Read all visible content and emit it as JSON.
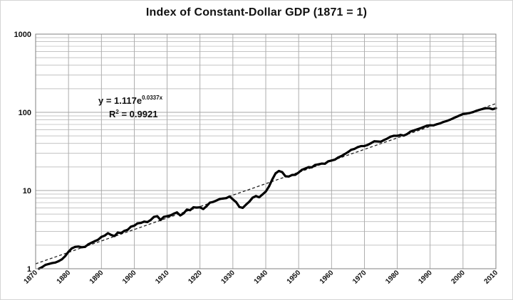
{
  "chart_data": {
    "type": "line",
    "title": "Index of Constant-Dollar  GDP  (1871 = 1)",
    "xlabel": "",
    "ylabel": "",
    "y_scale": "log",
    "xlim": [
      1870,
      2010
    ],
    "ylim": [
      1,
      1000
    ],
    "grid": true,
    "legend": "none",
    "x_ticks": [
      "1870",
      "1880",
      "1890",
      "1900",
      "1910",
      "1920",
      "1930",
      "1940",
      "1950",
      "1960",
      "1970",
      "1980",
      "1990",
      "2000",
      "2010"
    ],
    "y_ticks": [
      "1",
      "10",
      "100",
      "1000"
    ],
    "annotation": {
      "equation_prefix": "y = 1.117e",
      "equation_exponent": "0.0337x",
      "r2_prefix": "R",
      "r2_sup": "2",
      "r2_suffix": " = 0.9921"
    },
    "trendline": {
      "style": "dashed",
      "a": 1.117,
      "b": 0.0337,
      "x_origin_year": 1870,
      "color": "#222222"
    },
    "series": [
      {
        "color": "#000000",
        "x": [
          1871,
          1872,
          1873,
          1874,
          1875,
          1876,
          1877,
          1878,
          1879,
          1880,
          1881,
          1882,
          1883,
          1884,
          1885,
          1886,
          1887,
          1888,
          1889,
          1890,
          1891,
          1892,
          1893,
          1894,
          1895,
          1896,
          1897,
          1898,
          1899,
          1900,
          1901,
          1902,
          1903,
          1904,
          1905,
          1906,
          1907,
          1908,
          1909,
          1910,
          1911,
          1912,
          1913,
          1914,
          1915,
          1916,
          1917,
          1918,
          1919,
          1920,
          1921,
          1922,
          1923,
          1924,
          1925,
          1926,
          1927,
          1928,
          1929,
          1930,
          1931,
          1932,
          1933,
          1934,
          1935,
          1936,
          1937,
          1938,
          1939,
          1940,
          1941,
          1942,
          1943,
          1944,
          1945,
          1946,
          1947,
          1948,
          1949,
          1950,
          1951,
          1952,
          1953,
          1954,
          1955,
          1956,
          1957,
          1958,
          1959,
          1960,
          1961,
          1962,
          1963,
          1964,
          1965,
          1966,
          1967,
          1968,
          1969,
          1970,
          1971,
          1972,
          1973,
          1974,
          1975,
          1976,
          1977,
          1978,
          1979,
          1980,
          1981,
          1982,
          1983,
          1984,
          1985,
          1986,
          1987,
          1988,
          1989,
          1990,
          1991,
          1992,
          1993,
          1994,
          1995,
          1996,
          1997,
          1998,
          1999,
          2000,
          2001,
          2002,
          2003,
          2004,
          2005,
          2006,
          2007,
          2008,
          2009,
          2010
        ],
        "values": [
          1.0,
          1.05,
          1.12,
          1.15,
          1.18,
          1.2,
          1.25,
          1.32,
          1.45,
          1.65,
          1.82,
          1.9,
          1.92,
          1.88,
          1.9,
          2.05,
          2.15,
          2.25,
          2.35,
          2.55,
          2.65,
          2.85,
          2.7,
          2.62,
          2.9,
          2.85,
          3.05,
          3.15,
          3.45,
          3.55,
          3.8,
          3.85,
          4.0,
          3.95,
          4.2,
          4.6,
          4.7,
          4.2,
          4.6,
          4.7,
          4.8,
          5.05,
          5.25,
          4.8,
          5.1,
          5.7,
          5.6,
          6.1,
          6.05,
          6.1,
          5.8,
          6.3,
          7.0,
          7.15,
          7.45,
          7.8,
          7.9,
          8.0,
          8.4,
          7.7,
          7.1,
          6.15,
          6.0,
          6.6,
          7.2,
          8.1,
          8.5,
          8.2,
          8.9,
          9.7,
          11.3,
          13.9,
          16.6,
          17.8,
          17.2,
          15.2,
          15.1,
          15.8,
          15.9,
          17.0,
          18.4,
          19.1,
          19.9,
          19.8,
          21.2,
          21.6,
          22.1,
          22.0,
          23.6,
          24.2,
          24.8,
          26.4,
          27.6,
          29.2,
          31.0,
          33.2,
          34.1,
          35.9,
          37.0,
          37.1,
          38.3,
          40.3,
          42.6,
          42.4,
          42.1,
          44.3,
          46.3,
          48.9,
          50.2,
          50.1,
          51.4,
          50.4,
          52.8,
          56.7,
          58.6,
          60.5,
          62.5,
          65.0,
          67.4,
          68.3,
          68.1,
          70.3,
          72.2,
          75.2,
          77.4,
          80.2,
          83.9,
          87.5,
          91.4,
          95.3,
          96.2,
          97.9,
          100.6,
          104.4,
          107.6,
          110.5,
          112.7,
          112.6,
          109.5,
          112.8
        ]
      }
    ]
  }
}
